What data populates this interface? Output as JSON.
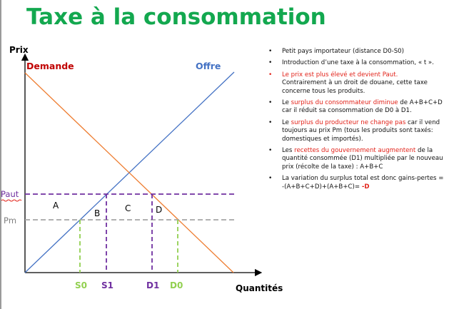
{
  "title": "Taxe à la consommation",
  "graph": {
    "y_axis_label": "Prix",
    "x_axis_label": "Quantités",
    "demand_label": "Demande",
    "supply_label": "Offre",
    "price_high_label": "Paut",
    "price_world_label": "Pm",
    "area_labels": [
      "A",
      "B",
      "C",
      "D"
    ],
    "quantity_labels": [
      "S0",
      "S1",
      "D1",
      "D0"
    ],
    "colors": {
      "demand": "#ee7d31",
      "supply": "#4472c4",
      "tax_price": "#7030a0",
      "world_price": "#a6a6a6",
      "world_quantity": "#92d050",
      "demand_label": "#c00000",
      "supply_label": "#4472c4"
    }
  },
  "bullets": [
    {
      "text": "Petit pays importateur (distance D0-S0)"
    },
    {
      "text": "Introduction d’une taxe à la consommation, « t »."
    },
    {
      "text": "Le prix est plus élevé et devient Paut.",
      "rest": "Contrairement à un droit de douane, cette taxe concerne tous les produits."
    },
    {
      "pre": "Le ",
      "highlight": "surplus du consommateur diminue",
      "post": " de A+B+C+D  car il réduit sa consommation de D0 à D1."
    },
    {
      "pre": "Le ",
      "highlight": "surplus du producteur ne change pas",
      "post": " car il vend toujours au prix Pm (tous les produits sont taxés: domestiques et importés)."
    },
    {
      "pre": "Les ",
      "highlight": "recettes du gouvernement augmentent",
      "post": " de la quantité consommée (D1) multipliée par le nouveau prix (récolte de la taxe) : A+B+C"
    },
    {
      "pre": "La variation du surplus total est donc gains-pertes = -(A+B+C+D)+(A+B+C)= ",
      "red": "-D"
    }
  ]
}
